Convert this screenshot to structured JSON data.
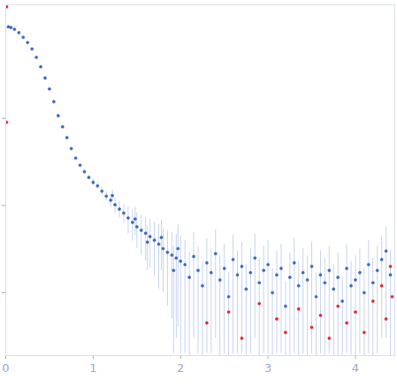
{
  "chart_data": {
    "type": "scatter",
    "log": "y",
    "tick_labels": "x",
    "grid": false,
    "xlim": [
      0,
      4.45
    ],
    "xticks": [
      0,
      1,
      2,
      3,
      4
    ],
    "ylim": [
      0.0019,
      20
    ],
    "yticks": [
      0.01,
      0.1,
      1
    ],
    "series": [
      {
        "color": "#3a69b8",
        "marker": "circle",
        "error_color": "#c6d4ec",
        "x": [
          0.03,
          0.06,
          0.1,
          0.15,
          0.2,
          0.25,
          0.3,
          0.35,
          0.4,
          0.45,
          0.5,
          0.55,
          0.6,
          0.65,
          0.7,
          0.75,
          0.8,
          0.85,
          0.9,
          0.95,
          1.0,
          1.05,
          1.1,
          1.15,
          1.2,
          1.22,
          1.25,
          1.3,
          1.35,
          1.4,
          1.45,
          1.48,
          1.5,
          1.55,
          1.6,
          1.62,
          1.65,
          1.7,
          1.75,
          1.78,
          1.8,
          1.85,
          1.9,
          1.92,
          1.95,
          1.97,
          2.0,
          2.05,
          2.1,
          2.15,
          2.2,
          2.25,
          2.3,
          2.35,
          2.4,
          2.45,
          2.5,
          2.55,
          2.6,
          2.65,
          2.7,
          2.75,
          2.8,
          2.85,
          2.9,
          2.95,
          3.0,
          3.05,
          3.1,
          3.15,
          3.2,
          3.25,
          3.3,
          3.35,
          3.4,
          3.45,
          3.5,
          3.55,
          3.6,
          3.65,
          3.7,
          3.75,
          3.8,
          3.85,
          3.9,
          3.95,
          4.0,
          4.05,
          4.1,
          4.15,
          4.2,
          4.25,
          4.3,
          4.35,
          4.4
        ],
        "values": [
          11.2,
          11.0,
          10.5,
          9.6,
          8.5,
          7.4,
          6.25,
          5.0,
          3.9,
          2.9,
          2.17,
          1.55,
          1.07,
          0.8,
          0.6,
          0.45,
          0.35,
          0.29,
          0.244,
          0.21,
          0.184,
          0.168,
          0.146,
          0.128,
          0.115,
          0.13,
          0.102,
          0.091,
          0.082,
          0.072,
          0.064,
          0.07,
          0.057,
          0.052,
          0.048,
          0.038,
          0.044,
          0.04,
          0.036,
          0.043,
          0.032,
          0.029,
          0.027,
          0.018,
          0.025,
          0.032,
          0.023,
          0.021,
          0.015,
          0.026,
          0.018,
          0.012,
          0.022,
          0.017,
          0.028,
          0.014,
          0.019,
          0.009,
          0.024,
          0.016,
          0.02,
          0.011,
          0.017,
          0.025,
          0.013,
          0.018,
          0.021,
          0.01,
          0.016,
          0.019,
          0.007,
          0.015,
          0.022,
          0.012,
          0.017,
          0.014,
          0.02,
          0.009,
          0.016,
          0.013,
          0.018,
          0.011,
          0.015,
          0.008,
          0.019,
          0.012,
          0.014,
          0.017,
          0.01,
          0.021,
          0.013,
          0.018,
          0.024,
          0.03,
          0.016
        ],
        "errors": [
          0.4,
          0.3,
          0.2,
          0.15,
          0.12,
          0.1,
          0.08,
          0.06,
          0.05,
          0.04,
          0.03,
          0.03,
          0.02,
          0.02,
          0.015,
          0.012,
          0.01,
          0.01,
          0.01,
          0.01,
          0.015,
          0.015,
          0.015,
          0.015,
          0.02,
          0.02,
          0.02,
          0.02,
          0.02,
          0.025,
          0.025,
          0.025,
          0.025,
          0.025,
          0.025,
          0.02,
          0.025,
          0.025,
          0.025,
          0.025,
          0.022,
          0.022,
          0.022,
          0.016,
          0.022,
          0.028,
          0.021,
          0.019,
          0.014,
          0.023,
          0.016,
          0.011,
          0.02,
          0.015,
          0.025,
          0.013,
          0.017,
          0.008,
          0.022,
          0.014,
          0.018,
          0.01,
          0.015,
          0.022,
          0.012,
          0.016,
          0.019,
          0.009,
          0.014,
          0.017,
          0.0063,
          0.0135,
          0.02,
          0.011,
          0.015,
          0.0126,
          0.018,
          0.008,
          0.014,
          0.0117,
          0.016,
          0.0099,
          0.0135,
          0.0072,
          0.017,
          0.011,
          0.0126,
          0.015,
          0.009,
          0.019,
          0.0117,
          0.016,
          0.021,
          0.027,
          0.0144
        ]
      },
      {
        "color": "#e0262f",
        "marker": "circle",
        "x": [
          0.01,
          0.01,
          2.3,
          2.55,
          2.7,
          2.9,
          3.1,
          3.2,
          3.35,
          3.5,
          3.6,
          3.7,
          3.8,
          3.9,
          4.0,
          4.1,
          4.2,
          4.3,
          4.35,
          4.4,
          4.42
        ],
        "values": [
          19,
          0.9,
          0.0045,
          0.006,
          0.003,
          0.0075,
          0.005,
          0.0035,
          0.0065,
          0.004,
          0.0055,
          0.003,
          0.007,
          0.0045,
          0.006,
          0.0035,
          0.008,
          0.012,
          0.005,
          0.02,
          0.009
        ]
      }
    ]
  }
}
